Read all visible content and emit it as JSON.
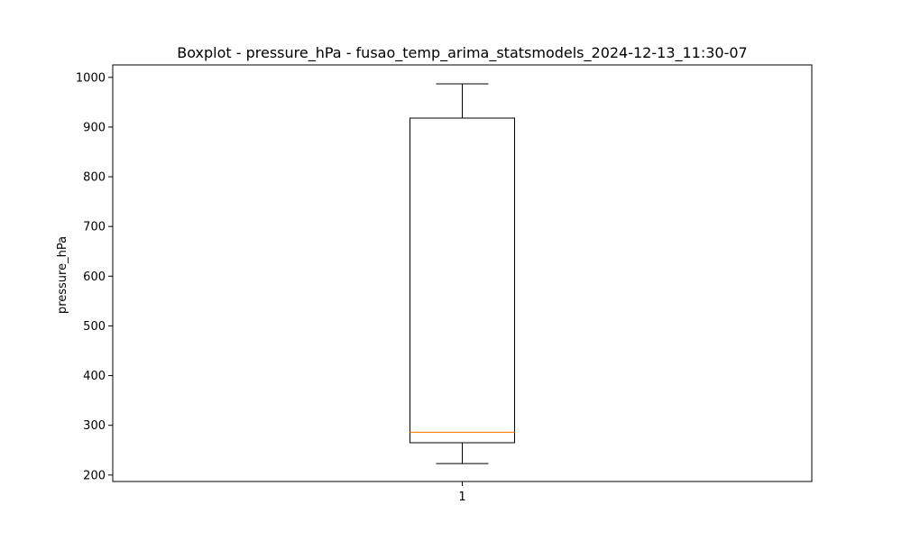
{
  "chart_data": {
    "type": "boxplot",
    "title": "Boxplot - pressure_hPa - fusao_temp_arima_statsmodels_2024-12-13_11:30-07",
    "xlabel": "",
    "ylabel": "pressure_hPa",
    "categories": [
      "1"
    ],
    "ylim": [
      187,
      1025
    ],
    "yticks": [
      200,
      300,
      400,
      500,
      600,
      700,
      800,
      900,
      1000
    ],
    "grid": false,
    "boxes": [
      {
        "category": "1",
        "whisker_low": 223,
        "q1": 265,
        "median": 286,
        "q3": 918,
        "whisker_high": 987
      }
    ],
    "colors": {
      "box": "#000000",
      "median": "#ff7f0e",
      "whisker": "#000000"
    }
  }
}
